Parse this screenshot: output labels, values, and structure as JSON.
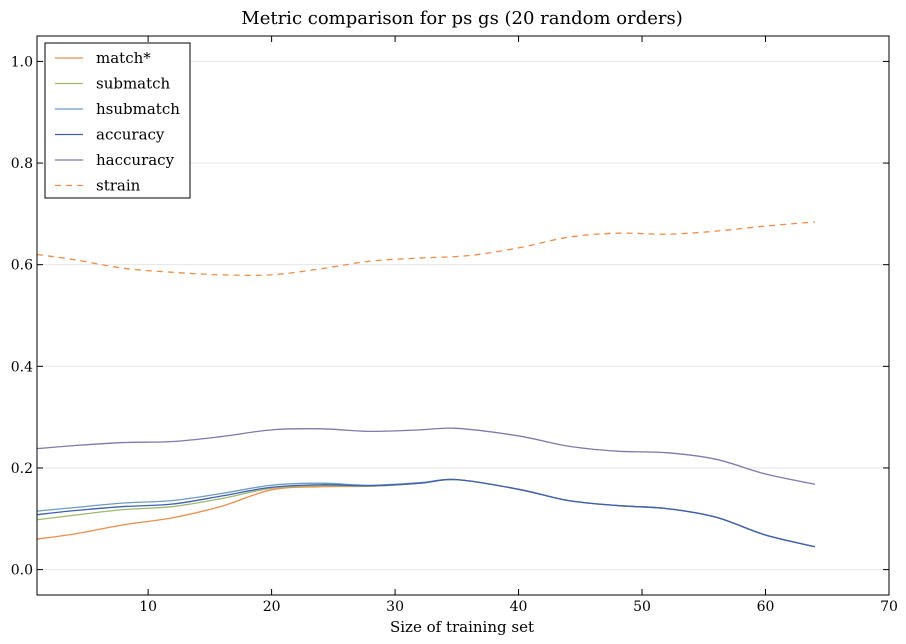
{
  "chart_data": {
    "type": "line",
    "title": "Metric comparison for ps gs (20 random orders)",
    "xlabel": "Size of training set",
    "ylabel": "",
    "xlim": [
      1,
      70
    ],
    "ylim": [
      -0.05,
      1.05
    ],
    "xticks": [
      10,
      20,
      30,
      40,
      50,
      60,
      70
    ],
    "yticks": [
      0.0,
      0.2,
      0.4,
      0.6,
      0.8,
      1.0
    ],
    "xtick_labels": [
      "10",
      "20",
      "30",
      "40",
      "50",
      "60",
      "70"
    ],
    "ytick_labels": [
      "0.0",
      "0.2",
      "0.4",
      "0.6",
      "0.8",
      "1.0"
    ],
    "grid": "horizontal",
    "legend_position": "top-left",
    "series": [
      {
        "name": "match*",
        "color": "#ee8d4a",
        "dash": "solid",
        "x": [
          1,
          4,
          8,
          12,
          16,
          20,
          24,
          28,
          32,
          35,
          40,
          44,
          48,
          52,
          56,
          60,
          64
        ],
        "y": [
          0.06,
          0.07,
          0.088,
          0.102,
          0.125,
          0.157,
          0.163,
          0.164,
          0.17,
          0.177,
          0.158,
          0.136,
          0.126,
          0.12,
          0.103,
          0.068,
          0.045
        ]
      },
      {
        "name": "submatch",
        "color": "#9db86e",
        "dash": "solid",
        "x": [
          1,
          4,
          8,
          12,
          16,
          20,
          24,
          28,
          32,
          35,
          40,
          44,
          48,
          52,
          56,
          60,
          64
        ],
        "y": [
          0.098,
          0.107,
          0.118,
          0.124,
          0.14,
          0.16,
          0.165,
          0.164,
          0.17,
          0.177,
          0.158,
          0.136,
          0.126,
          0.12,
          0.103,
          0.068,
          0.045
        ]
      },
      {
        "name": "hsubmatch",
        "color": "#6d9bc3",
        "dash": "solid",
        "x": [
          1,
          4,
          8,
          12,
          16,
          20,
          24,
          28,
          32,
          35,
          40,
          44,
          48,
          52,
          56,
          60,
          64
        ],
        "y": [
          0.115,
          0.122,
          0.131,
          0.136,
          0.15,
          0.166,
          0.17,
          0.166,
          0.171,
          0.177,
          0.158,
          0.136,
          0.126,
          0.12,
          0.103,
          0.068,
          0.045
        ]
      },
      {
        "name": "accuracy",
        "color": "#3f5fb3",
        "dash": "solid",
        "x": [
          1,
          4,
          8,
          12,
          16,
          20,
          24,
          28,
          32,
          35,
          40,
          44,
          48,
          52,
          56,
          60,
          64
        ],
        "y": [
          0.108,
          0.116,
          0.124,
          0.129,
          0.145,
          0.162,
          0.167,
          0.165,
          0.17,
          0.177,
          0.158,
          0.136,
          0.126,
          0.12,
          0.103,
          0.068,
          0.045
        ]
      },
      {
        "name": "haccuracy",
        "color": "#8377ad",
        "dash": "solid",
        "x": [
          1,
          4,
          8,
          12,
          16,
          20,
          24,
          28,
          32,
          35,
          40,
          44,
          48,
          52,
          56,
          60,
          64
        ],
        "y": [
          0.238,
          0.244,
          0.25,
          0.252,
          0.262,
          0.275,
          0.277,
          0.272,
          0.275,
          0.278,
          0.263,
          0.243,
          0.233,
          0.23,
          0.217,
          0.188,
          0.168
        ]
      },
      {
        "name": "strain",
        "color": "#ee8d4a",
        "dash": "dashed",
        "x": [
          1,
          4,
          8,
          12,
          16,
          20,
          24,
          28,
          32,
          36,
          40,
          44,
          48,
          52,
          56,
          60,
          64
        ],
        "y": [
          0.62,
          0.61,
          0.593,
          0.585,
          0.58,
          0.58,
          0.592,
          0.607,
          0.613,
          0.618,
          0.633,
          0.654,
          0.662,
          0.66,
          0.666,
          0.676,
          0.684
        ]
      }
    ]
  }
}
